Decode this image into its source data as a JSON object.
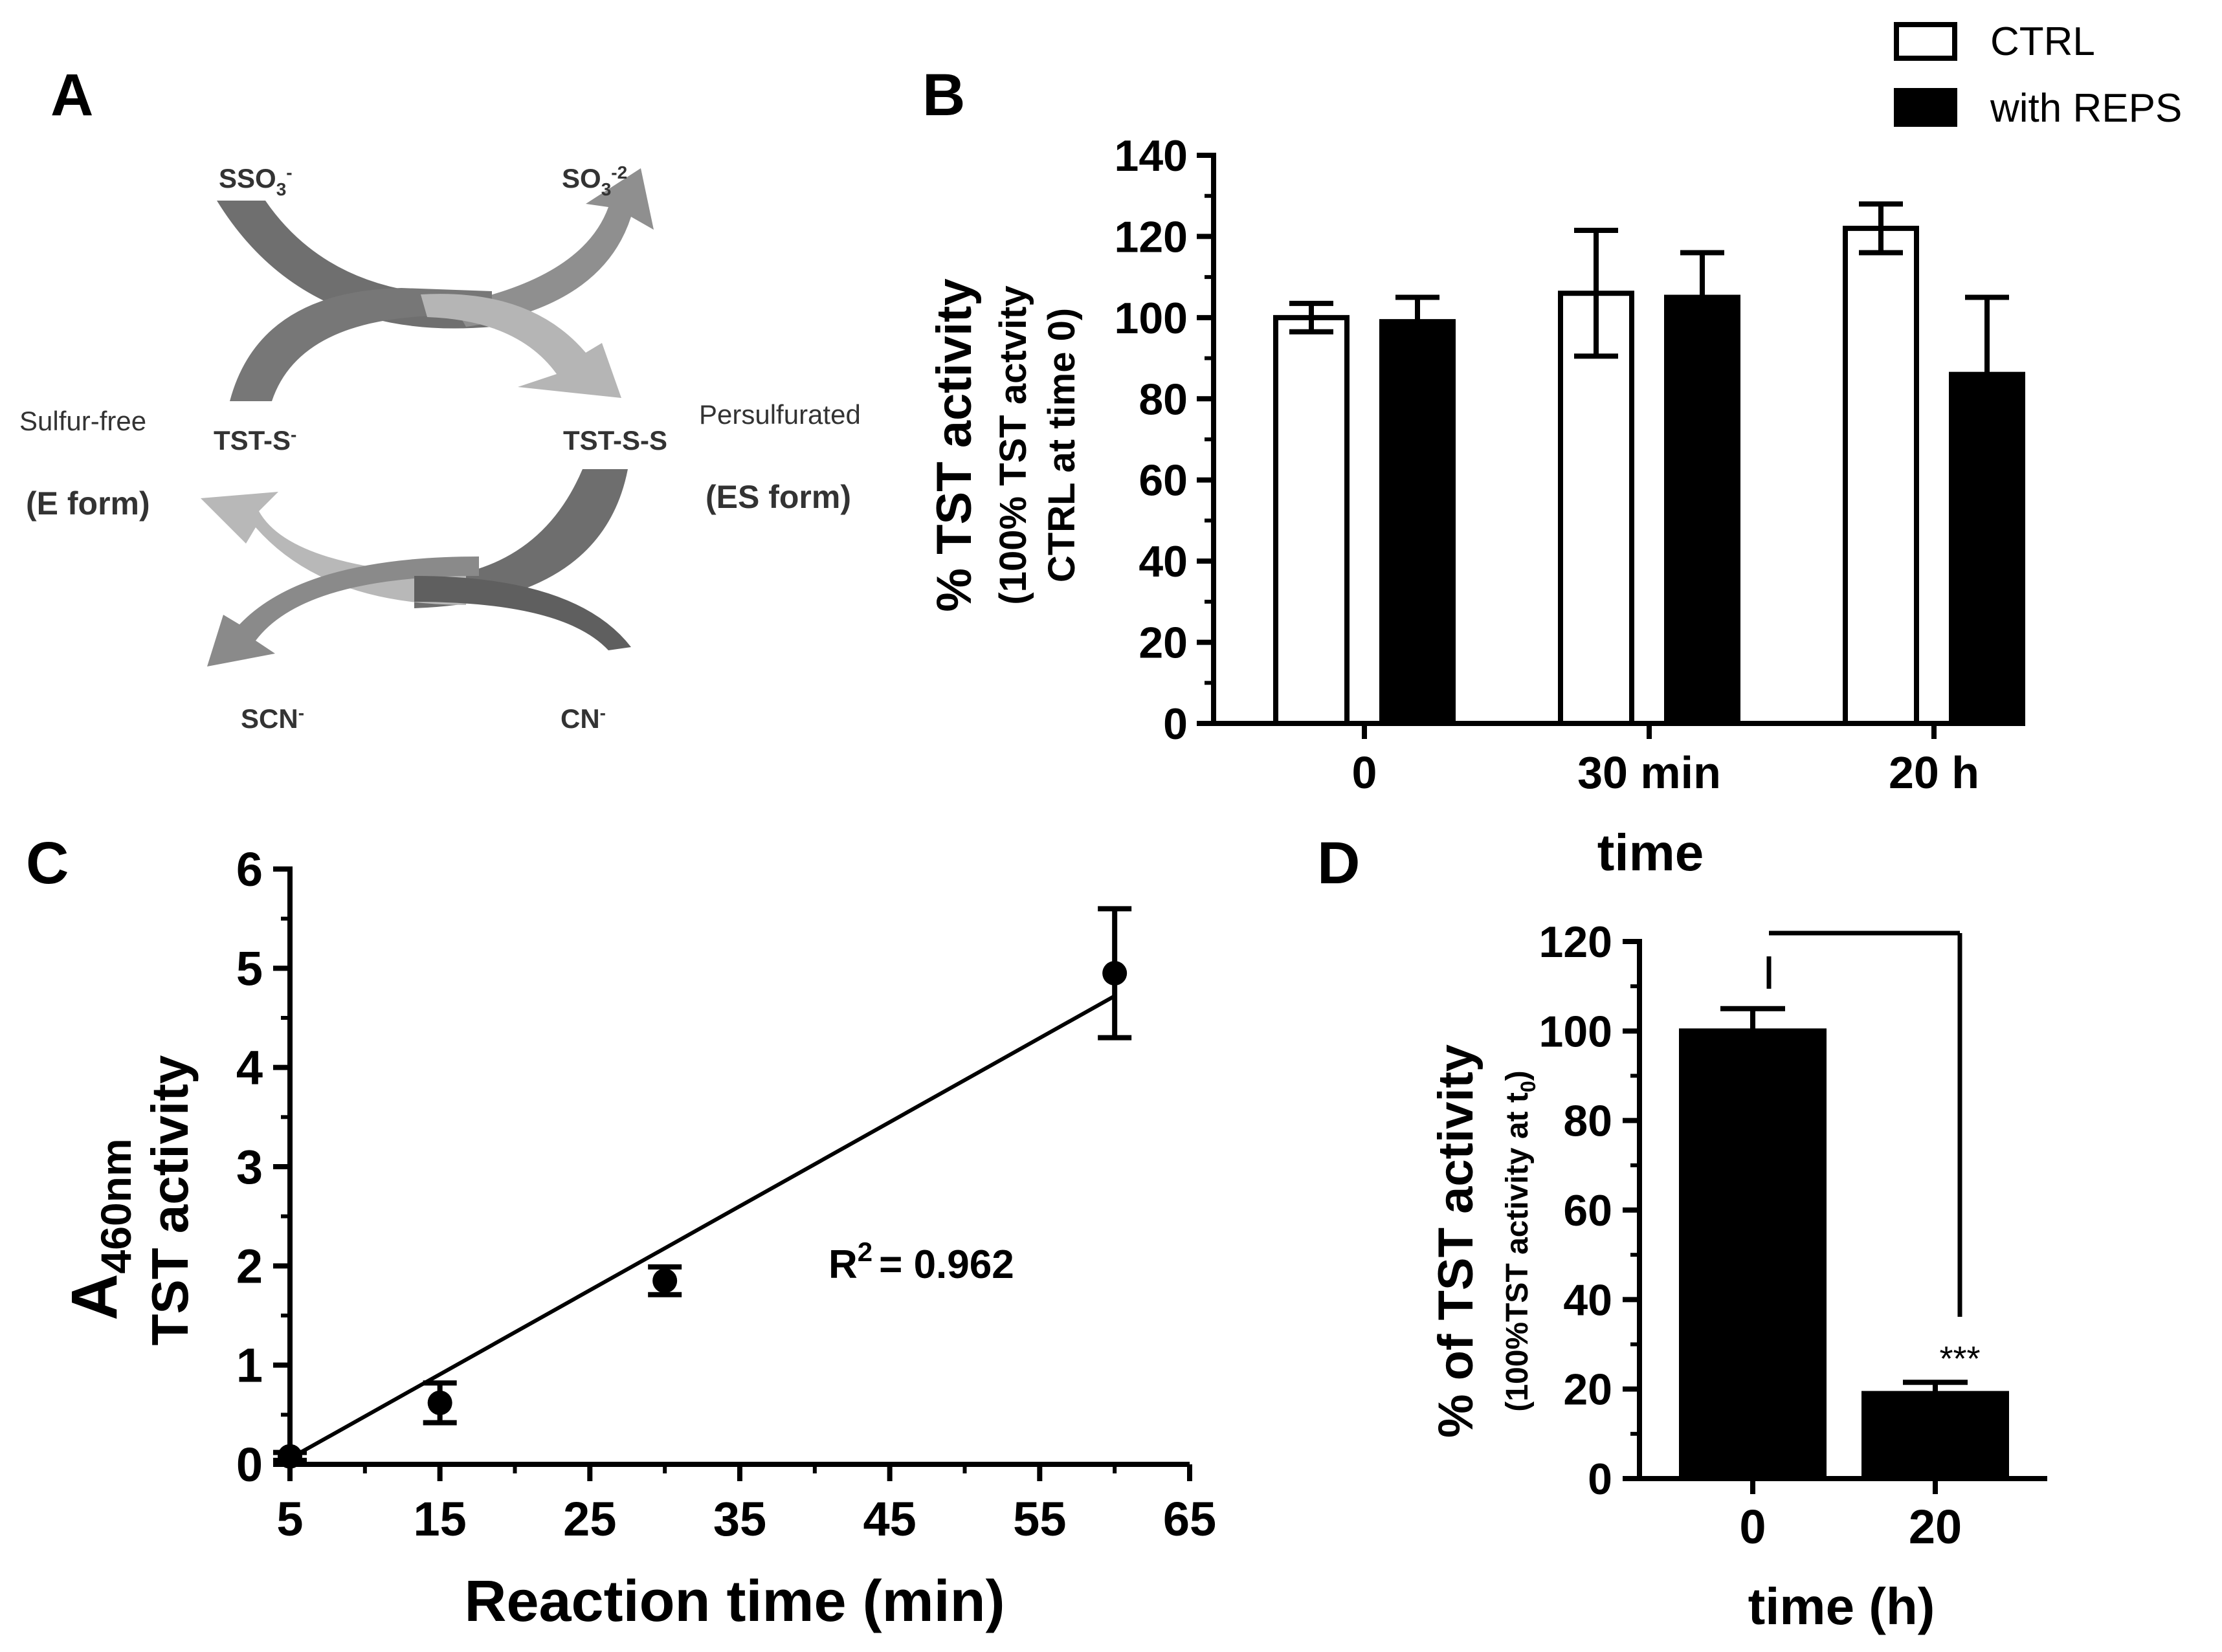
{
  "panel_labels": {
    "a": "A",
    "b": "B",
    "c": "C",
    "d": "D"
  },
  "diagram": {
    "sso3": "SSO3-",
    "so3": "SO3-2",
    "sulfur_free": "Sulfur-free",
    "e_form": "(E form)",
    "tst_s": "TST-S-",
    "tst_ss": "TST-S-S",
    "persulfurated": "Persulfurated",
    "es_form": "(ES form)",
    "scn": "SCN-",
    "cn": "CN-"
  },
  "chart_data": [
    {
      "panel": "B",
      "type": "bar",
      "categories": [
        "0",
        "30 min",
        "20 h"
      ],
      "series": [
        {
          "name": "CTRL",
          "values": [
            100,
            106,
            122
          ],
          "errors": [
            3.5,
            15.5,
            6
          ],
          "fill": "white"
        },
        {
          "name": "with REPS",
          "values": [
            99,
            105,
            86
          ],
          "errors": [
            6,
            11,
            19
          ],
          "fill": "black"
        }
      ],
      "ylabel": "% TST activity",
      "ylabel_sub1": "(100% TST actvity",
      "ylabel_sub2": "CTRL at time 0)",
      "xlabel": "time",
      "ylim": [
        0,
        140
      ],
      "yticks": [
        0,
        20,
        40,
        60,
        80,
        100,
        120,
        140
      ],
      "legend": {
        "ctrl": "CTRL",
        "reps": "with REPS"
      }
    },
    {
      "panel": "C",
      "type": "scatter",
      "x": [
        5,
        15,
        30,
        60
      ],
      "y": [
        0.08,
        0.62,
        1.85,
        4.95
      ],
      "errors": [
        0.04,
        0.2,
        0.14,
        0.65
      ],
      "fit": {
        "x": [
          5,
          60
        ],
        "y": [
          0.06,
          4.72
        ]
      },
      "annotation_prefix": "R",
      "annotation_sup": "2",
      "annotation_value": "= 0.962",
      "ylabel_main": "A",
      "ylabel_sub": "460nm",
      "ylabel_line2": "TST activity",
      "xlabel": "Reaction time (min)",
      "xlim": [
        5,
        65
      ],
      "ylim": [
        0,
        6
      ],
      "xticks": [
        5,
        15,
        25,
        35,
        45,
        55,
        65
      ],
      "yticks": [
        0,
        1,
        2,
        3,
        4,
        5,
        6
      ]
    },
    {
      "panel": "D",
      "type": "bar",
      "categories": [
        "0",
        "20"
      ],
      "values": [
        100,
        19
      ],
      "errors": [
        5,
        2.5
      ],
      "significance": "***",
      "ylabel": "% of TST activity",
      "ylabel_sub": "(100%TST activity at t",
      "ylabel_sub_sub": "0",
      "ylabel_sub_end": ")",
      "xlabel": "time (h)",
      "ylim": [
        0,
        120
      ],
      "yticks": [
        0,
        20,
        40,
        60,
        80,
        100,
        120
      ]
    }
  ]
}
